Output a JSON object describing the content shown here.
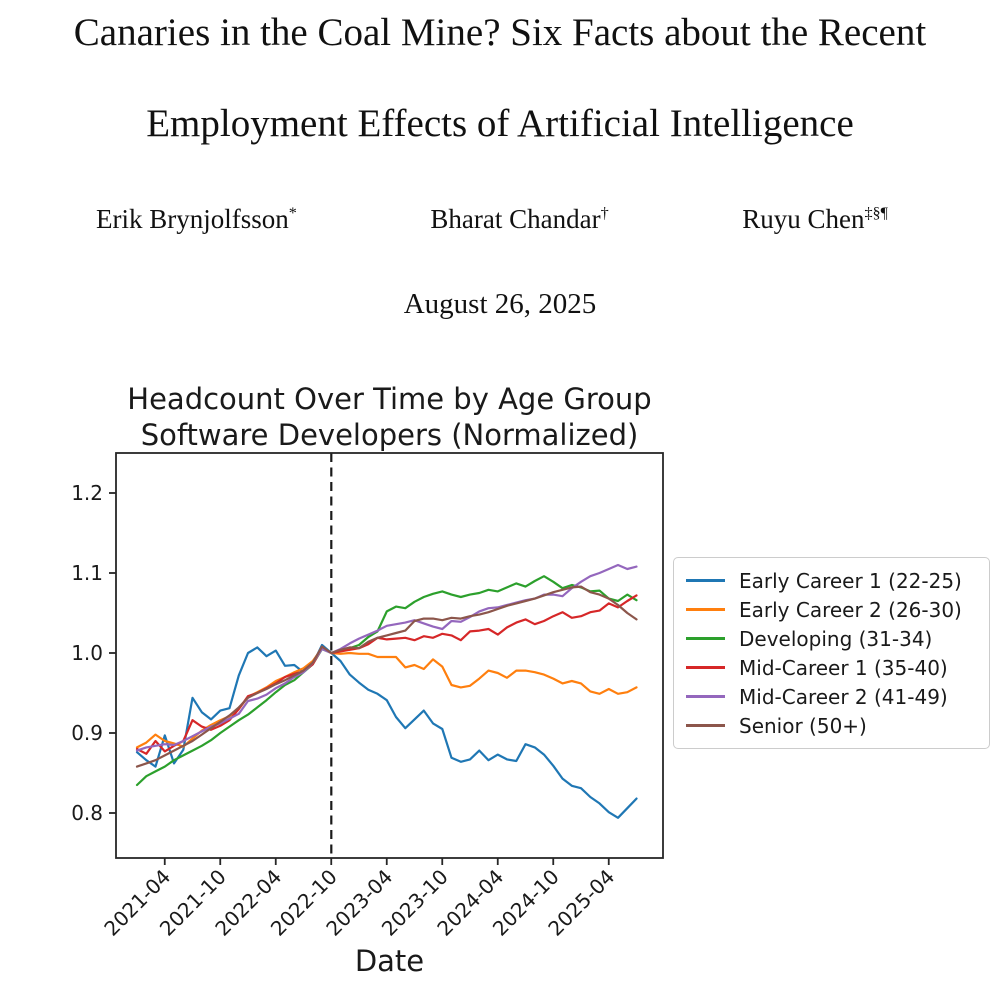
{
  "paper": {
    "title_line1": "Canaries in the Coal Mine? Six Facts about the Recent",
    "title_line2": "Employment Effects of Artificial Intelligence",
    "authors": [
      {
        "name": "Erik Brynjolfsson",
        "mark": "*"
      },
      {
        "name": "Bharat Chandar",
        "mark": "†"
      },
      {
        "name": "Ruyu Chen",
        "mark": "‡§¶"
      }
    ],
    "date": "August 26, 2025"
  },
  "chart_data": {
    "type": "line",
    "title_line1": "Headcount Over Time by Age Group",
    "title_line2": "Software Developers (Normalized)",
    "xlabel": "Date",
    "ylabel": "",
    "legend_position": "right",
    "grid": false,
    "ylim": [
      0.744,
      1.25
    ],
    "y_ticks": [
      "0.8",
      "0.9",
      "1.0",
      "1.1",
      "1.2"
    ],
    "y_tick_values": [
      0.8,
      0.9,
      1.0,
      1.1,
      1.2
    ],
    "x": [
      "2021-01",
      "2021-02",
      "2021-03",
      "2021-04",
      "2021-05",
      "2021-06",
      "2021-07",
      "2021-08",
      "2021-09",
      "2021-10",
      "2021-11",
      "2021-12",
      "2022-01",
      "2022-02",
      "2022-03",
      "2022-04",
      "2022-05",
      "2022-06",
      "2022-07",
      "2022-08",
      "2022-09",
      "2022-10",
      "2022-11",
      "2022-12",
      "2023-01",
      "2023-02",
      "2023-03",
      "2023-04",
      "2023-05",
      "2023-06",
      "2023-07",
      "2023-08",
      "2023-09",
      "2023-10",
      "2023-11",
      "2023-12",
      "2024-01",
      "2024-02",
      "2024-03",
      "2024-04",
      "2024-05",
      "2024-06",
      "2024-07",
      "2024-08",
      "2024-09",
      "2024-10",
      "2024-11",
      "2024-12",
      "2025-01",
      "2025-02",
      "2025-03",
      "2025-04",
      "2025-05",
      "2025-06",
      "2025-07"
    ],
    "x_tick_labels": [
      "2021-04",
      "2021-10",
      "2022-04",
      "2022-10",
      "2023-04",
      "2023-10",
      "2024-04",
      "2024-10",
      "2025-04"
    ],
    "x_tick_indices": [
      3,
      9,
      15,
      21,
      27,
      33,
      39,
      45,
      51
    ],
    "vline": {
      "x_index": 21,
      "style": "dashed",
      "color": "#1a1a1a"
    },
    "series": [
      {
        "name": "Early Career 1 (22-25)",
        "color": "#1f77b4",
        "values": [
          0.876,
          0.866,
          0.858,
          0.897,
          0.862,
          0.879,
          0.944,
          0.926,
          0.917,
          0.928,
          0.931,
          0.972,
          1.0,
          1.007,
          0.996,
          1.003,
          0.984,
          0.985,
          0.976,
          0.986,
          1.01,
          1.0,
          0.99,
          0.973,
          0.963,
          0.954,
          0.949,
          0.941,
          0.92,
          0.906,
          0.917,
          0.928,
          0.912,
          0.905,
          0.869,
          0.864,
          0.867,
          0.878,
          0.866,
          0.873,
          0.867,
          0.865,
          0.886,
          0.882,
          0.873,
          0.859,
          0.843,
          0.834,
          0.831,
          0.82,
          0.812,
          0.801,
          0.794,
          0.806,
          0.818
        ]
      },
      {
        "name": "Early Career 2 (26-30)",
        "color": "#ff7f0e",
        "values": [
          0.882,
          0.888,
          0.898,
          0.89,
          0.887,
          0.883,
          0.893,
          0.903,
          0.91,
          0.916,
          0.921,
          0.93,
          0.945,
          0.951,
          0.957,
          0.965,
          0.97,
          0.976,
          0.981,
          0.99,
          1.006,
          1.0,
          0.999,
          1.0,
          0.999,
          0.999,
          0.995,
          0.995,
          0.995,
          0.982,
          0.985,
          0.98,
          0.992,
          0.983,
          0.96,
          0.957,
          0.959,
          0.968,
          0.978,
          0.975,
          0.969,
          0.978,
          0.978,
          0.976,
          0.973,
          0.968,
          0.962,
          0.965,
          0.962,
          0.952,
          0.949,
          0.955,
          0.949,
          0.951,
          0.957
        ]
      },
      {
        "name": "Developing (31-34)",
        "color": "#2ca02c",
        "values": [
          0.835,
          0.846,
          0.852,
          0.858,
          0.866,
          0.872,
          0.878,
          0.884,
          0.891,
          0.9,
          0.908,
          0.916,
          0.923,
          0.932,
          0.941,
          0.951,
          0.96,
          0.966,
          0.976,
          0.986,
          1.005,
          1.0,
          1.004,
          1.006,
          1.01,
          1.02,
          1.027,
          1.052,
          1.058,
          1.056,
          1.064,
          1.07,
          1.074,
          1.077,
          1.073,
          1.07,
          1.073,
          1.075,
          1.079,
          1.077,
          1.082,
          1.087,
          1.083,
          1.09,
          1.096,
          1.089,
          1.081,
          1.085,
          1.082,
          1.077,
          1.078,
          1.068,
          1.065,
          1.073,
          1.066
        ]
      },
      {
        "name": "Mid-Career 1 (35-40)",
        "color": "#d62728",
        "values": [
          0.88,
          0.874,
          0.89,
          0.877,
          0.884,
          0.89,
          0.916,
          0.908,
          0.904,
          0.909,
          0.916,
          0.93,
          0.946,
          0.95,
          0.956,
          0.962,
          0.97,
          0.974,
          0.977,
          0.986,
          1.006,
          1.0,
          1.002,
          1.004,
          1.006,
          1.011,
          1.019,
          1.017,
          1.018,
          1.019,
          1.016,
          1.021,
          1.019,
          1.024,
          1.022,
          1.016,
          1.027,
          1.028,
          1.03,
          1.023,
          1.032,
          1.038,
          1.042,
          1.036,
          1.04,
          1.046,
          1.051,
          1.044,
          1.046,
          1.051,
          1.053,
          1.062,
          1.057,
          1.065,
          1.072
        ]
      },
      {
        "name": "Mid-Career 2 (41-49)",
        "color": "#9467bd",
        "values": [
          0.878,
          0.882,
          0.884,
          0.886,
          0.885,
          0.89,
          0.896,
          0.902,
          0.908,
          0.912,
          0.918,
          0.924,
          0.94,
          0.943,
          0.948,
          0.956,
          0.962,
          0.97,
          0.976,
          0.988,
          1.005,
          1.0,
          1.005,
          1.012,
          1.018,
          1.023,
          1.028,
          1.034,
          1.036,
          1.038,
          1.041,
          1.037,
          1.033,
          1.03,
          1.04,
          1.039,
          1.045,
          1.052,
          1.056,
          1.057,
          1.06,
          1.063,
          1.066,
          1.068,
          1.073,
          1.073,
          1.071,
          1.081,
          1.089,
          1.096,
          1.1,
          1.105,
          1.11,
          1.105,
          1.108
        ]
      },
      {
        "name": "Senior (50+)",
        "color": "#8c564b",
        "values": [
          0.858,
          0.862,
          0.866,
          0.872,
          0.878,
          0.884,
          0.89,
          0.898,
          0.906,
          0.914,
          0.922,
          0.932,
          0.944,
          0.95,
          0.955,
          0.961,
          0.966,
          0.972,
          0.978,
          0.988,
          1.008,
          1.0,
          1.004,
          1.007,
          1.006,
          1.014,
          1.019,
          1.022,
          1.025,
          1.028,
          1.04,
          1.043,
          1.043,
          1.041,
          1.044,
          1.043,
          1.046,
          1.048,
          1.051,
          1.055,
          1.059,
          1.062,
          1.065,
          1.068,
          1.072,
          1.076,
          1.079,
          1.082,
          1.083,
          1.076,
          1.073,
          1.068,
          1.06,
          1.05,
          1.042
        ]
      }
    ]
  }
}
